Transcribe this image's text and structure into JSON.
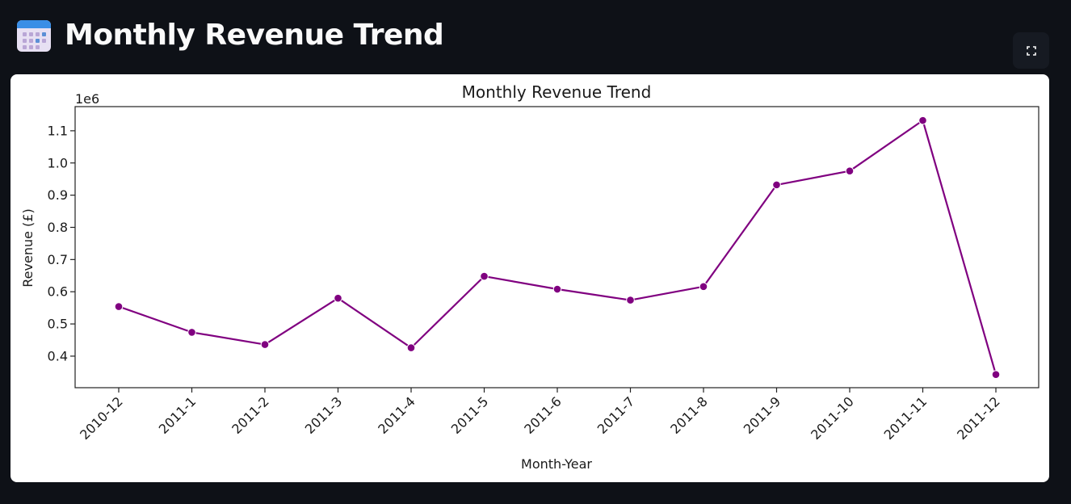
{
  "page": {
    "title": "Monthly Revenue Trend",
    "icon": "calendar-icon"
  },
  "toolbar": {
    "fullscreen_icon": "fullscreen-icon"
  },
  "chart_data": {
    "type": "line",
    "title": "Monthly Revenue Trend",
    "xlabel": "Month-Year",
    "ylabel": "Revenue (£)",
    "y_offset_label": "1e6",
    "categories": [
      "2010-12",
      "2011-1",
      "2011-2",
      "2011-3",
      "2011-4",
      "2011-5",
      "2011-6",
      "2011-7",
      "2011-8",
      "2011-9",
      "2011-10",
      "2011-11",
      "2011-12"
    ],
    "series": [
      {
        "values": [
          0.554,
          0.474,
          0.436,
          0.58,
          0.426,
          0.648,
          0.608,
          0.574,
          0.616,
          0.932,
          0.975,
          1.132,
          0.343
        ]
      }
    ],
    "y_ticks": [
      "0.4",
      "0.5",
      "0.6",
      "0.7",
      "0.8",
      "0.9",
      "1.0",
      "1.1"
    ],
    "ylim": [
      0.302,
      1.175
    ],
    "grid": false,
    "line_color": "#800080",
    "marker": "circle"
  }
}
